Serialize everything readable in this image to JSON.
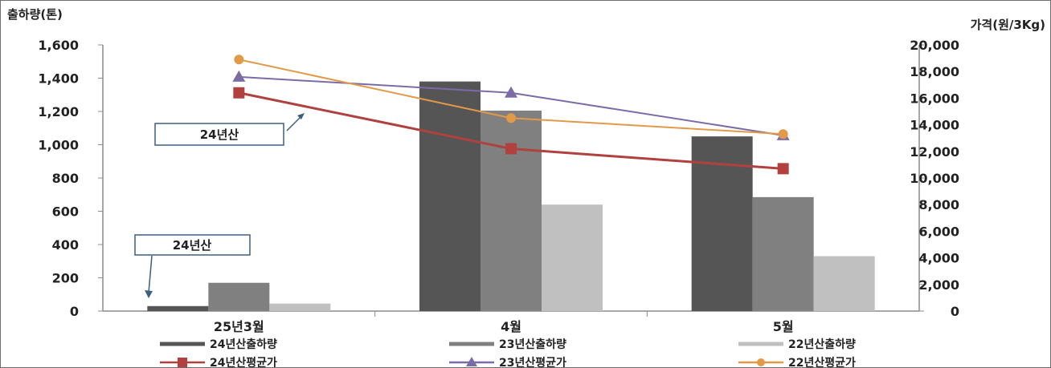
{
  "chart_data": {
    "type": "bar",
    "ylabel_left": "출하량(톤)",
    "ylabel_right": "가격(원/3Kg)",
    "categories": [
      "25년3월",
      "4월",
      "5월"
    ],
    "ylim_left": [
      0,
      1600
    ],
    "ylim_right": [
      0,
      20000
    ],
    "yticks_left": [
      "1,600",
      "1,400",
      "1,200",
      "1,000",
      "800",
      "600",
      "400",
      "200",
      "0"
    ],
    "yticks_right": [
      "20,000",
      "18,000",
      "16,000",
      "14,000",
      "12,000",
      "10,000",
      "8,000",
      "6,000",
      "4,000",
      "2,000",
      "0"
    ],
    "bar_series": [
      {
        "name": "24년산출하량",
        "color": "#555555",
        "values": [
          30,
          1380,
          1050
        ]
      },
      {
        "name": "23년산출하량",
        "color": "#808080",
        "values": [
          170,
          1205,
          685
        ]
      },
      {
        "name": "22년산출하량",
        "color": "#c0c0c0",
        "values": [
          45,
          640,
          330
        ]
      }
    ],
    "line_series": [
      {
        "name": "24년산평균가",
        "color": "#b0413e",
        "marker": "square",
        "values": [
          16400,
          12200,
          10700
        ]
      },
      {
        "name": "23년산평균가",
        "color": "#7b6ca8",
        "marker": "triangle",
        "values": [
          17600,
          16400,
          13200
        ]
      },
      {
        "name": "22년산평균가",
        "color": "#e39a48",
        "marker": "circle",
        "values": [
          18900,
          14500,
          13300
        ]
      }
    ],
    "annotations": [
      "24년산",
      "24년산"
    ],
    "grid": false,
    "legend_position": "bottom"
  }
}
